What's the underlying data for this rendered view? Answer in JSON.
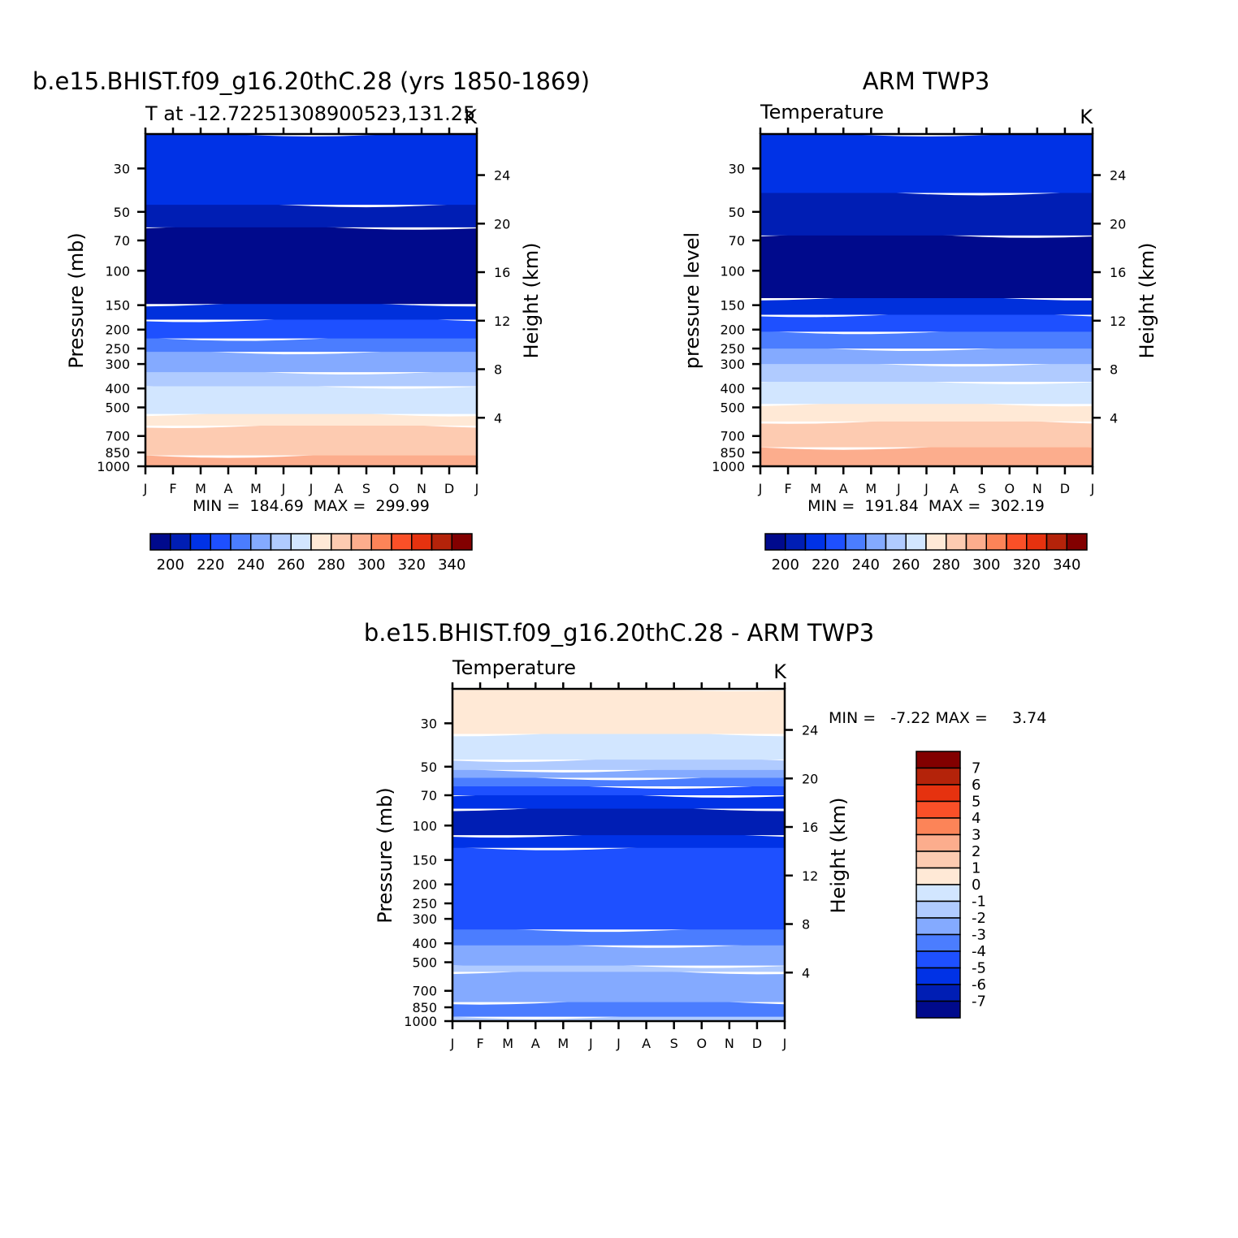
{
  "chart_data": [
    {
      "type": "heatmap",
      "title": "b.e15.BHIST.f09_g16.20thC.28 (yrs 1850-1869)",
      "subtitle_left": "T at -12.72251308900523,131.25",
      "subtitle_right": "K",
      "ylabel": "Pressure (mb)",
      "ylabel_right": "Height (km)",
      "x_ticks": [
        "J",
        "F",
        "M",
        "A",
        "M",
        "J",
        "J",
        "A",
        "S",
        "O",
        "N",
        "D",
        "J"
      ],
      "y_ticks": [
        "30",
        "50",
        "70",
        "100",
        "150",
        "200",
        "250",
        "300",
        "400",
        "500",
        "700",
        "850",
        "1000"
      ],
      "y_tick_values": [
        30,
        50,
        70,
        100,
        150,
        200,
        250,
        300,
        400,
        500,
        700,
        850,
        1000
      ],
      "y_range": [
        20,
        1000
      ],
      "height_ticks": [
        "24",
        "20",
        "16",
        "12",
        "8",
        "4"
      ],
      "height_tick_values": [
        24,
        20,
        16,
        12,
        8,
        4
      ],
      "stats": "MIN =  184.69  MAX =  299.99",
      "colorbar_labels": [
        "200",
        "220",
        "240",
        "260",
        "280",
        "300",
        "320",
        "340"
      ],
      "bands_bottom_up": [
        {
          "color": "#fcad8d",
          "bottom": 1000,
          "top": 880
        },
        {
          "color": "#fdcbb1",
          "bottom": 880,
          "top": 620
        },
        {
          "color": "#ffe9d6",
          "bottom": 620,
          "top": 540
        },
        {
          "color": "#d2e6ff",
          "bottom": 540,
          "top": 390
        },
        {
          "color": "#b0cbff",
          "bottom": 390,
          "top": 330
        },
        {
          "color": "#84aaff",
          "bottom": 330,
          "top": 260
        },
        {
          "color": "#4b7dff",
          "bottom": 260,
          "top": 222
        },
        {
          "color": "#1e50ff",
          "bottom": 222,
          "top": 178
        },
        {
          "color": "#0030dc",
          "bottom": 178,
          "top": 148
        },
        {
          "color": "#000a8c",
          "bottom": 148,
          "top": 60
        },
        {
          "color": "#001eb4",
          "bottom": 60,
          "top": 46
        },
        {
          "color": "#0032e6",
          "bottom": 46,
          "top": 20
        }
      ]
    },
    {
      "type": "heatmap",
      "title": "ARM TWP3",
      "subtitle_left": "Temperature",
      "subtitle_right": "K",
      "ylabel": "pressure level",
      "ylabel_right": "Height (km)",
      "x_ticks": [
        "J",
        "F",
        "M",
        "A",
        "M",
        "J",
        "J",
        "A",
        "S",
        "O",
        "N",
        "D",
        "J"
      ],
      "y_ticks": [
        "30",
        "50",
        "70",
        "100",
        "150",
        "200",
        "250",
        "300",
        "400",
        "500",
        "700",
        "850",
        "1000"
      ],
      "y_tick_values": [
        30,
        50,
        70,
        100,
        150,
        200,
        250,
        300,
        400,
        500,
        700,
        850,
        1000
      ],
      "y_range": [
        20,
        1000
      ],
      "height_ticks": [
        "24",
        "20",
        "16",
        "12",
        "8",
        "4"
      ],
      "height_tick_values": [
        24,
        20,
        16,
        12,
        8,
        4
      ],
      "stats": "MIN =  191.84  MAX =  302.19",
      "colorbar_labels": [
        "200",
        "220",
        "240",
        "260",
        "280",
        "300",
        "320",
        "340"
      ],
      "bands_bottom_up": [
        {
          "color": "#fcad8d",
          "bottom": 1000,
          "top": 800
        },
        {
          "color": "#fdcbb1",
          "bottom": 800,
          "top": 590
        },
        {
          "color": "#ffe9d6",
          "bottom": 590,
          "top": 480
        },
        {
          "color": "#d2e6ff",
          "bottom": 480,
          "top": 370
        },
        {
          "color": "#b0cbff",
          "bottom": 370,
          "top": 300
        },
        {
          "color": "#84aaff",
          "bottom": 300,
          "top": 250
        },
        {
          "color": "#4b7dff",
          "bottom": 250,
          "top": 205
        },
        {
          "color": "#1e50ff",
          "bottom": 205,
          "top": 168
        },
        {
          "color": "#0030dc",
          "bottom": 168,
          "top": 138
        },
        {
          "color": "#000a8c",
          "bottom": 138,
          "top": 66
        },
        {
          "color": "#001eb4",
          "bottom": 66,
          "top": 40
        },
        {
          "color": "#0032e6",
          "bottom": 40,
          "top": 20
        }
      ]
    },
    {
      "type": "heatmap",
      "title": "b.e15.BHIST.f09_g16.20thC.28 - ARM TWP3",
      "subtitle_left": "Temperature",
      "subtitle_right": "K",
      "ylabel": "Pressure (mb)",
      "ylabel_right": "Height (km)",
      "x_ticks": [
        "J",
        "F",
        "M",
        "A",
        "M",
        "J",
        "J",
        "A",
        "S",
        "O",
        "N",
        "D",
        "J"
      ],
      "y_ticks": [
        "30",
        "50",
        "70",
        "100",
        "150",
        "200",
        "250",
        "300",
        "400",
        "500",
        "700",
        "850",
        "1000"
      ],
      "y_tick_values": [
        30,
        50,
        70,
        100,
        150,
        200,
        250,
        300,
        400,
        500,
        700,
        850,
        1000
      ],
      "y_range": [
        20,
        1000
      ],
      "height_ticks": [
        "24",
        "20",
        "16",
        "12",
        "8",
        "4"
      ],
      "height_tick_values": [
        24,
        20,
        16,
        12,
        8,
        4
      ],
      "stats": "MIN =   -7.22 MAX =     3.74",
      "colorbar_labels": [
        "7",
        "6",
        "5",
        "4",
        "3",
        "2",
        "1",
        "0",
        "-1",
        "-2",
        "-3",
        "-4",
        "-5",
        "-6",
        "-7"
      ],
      "bands_bottom_up": [
        {
          "color": "#b0cbff",
          "bottom": 1000,
          "top": 950
        },
        {
          "color": "#4b7dff",
          "bottom": 950,
          "top": 800
        },
        {
          "color": "#84aaff",
          "bottom": 800,
          "top": 560
        },
        {
          "color": "#b0cbff",
          "bottom": 560,
          "top": 520
        },
        {
          "color": "#84aaff",
          "bottom": 520,
          "top": 410
        },
        {
          "color": "#4b7dff",
          "bottom": 410,
          "top": 340
        },
        {
          "color": "#1e50ff",
          "bottom": 340,
          "top": 130
        },
        {
          "color": "#0032e6",
          "bottom": 130,
          "top": 112
        },
        {
          "color": "#001eb4",
          "bottom": 112,
          "top": 82
        },
        {
          "color": "#0032e6",
          "bottom": 82,
          "top": 70
        },
        {
          "color": "#1e50ff",
          "bottom": 70,
          "top": 63
        },
        {
          "color": "#4b7dff",
          "bottom": 63,
          "top": 57
        },
        {
          "color": "#84aaff",
          "bottom": 57,
          "top": 52
        },
        {
          "color": "#b0cbff",
          "bottom": 52,
          "top": 46
        },
        {
          "color": "#d2e6ff",
          "bottom": 46,
          "top": 34
        },
        {
          "color": "#ffe9d6",
          "bottom": 34,
          "top": 20
        }
      ]
    }
  ],
  "palette_abs": [
    "#000a8c",
    "#001eb4",
    "#0032e6",
    "#1e50ff",
    "#4b7dff",
    "#84aaff",
    "#b0cbff",
    "#d2e6ff",
    "#ffe9d6",
    "#fdcbb1",
    "#fcad8d",
    "#fc8458",
    "#fa5028",
    "#e6320f",
    "#b4230a",
    "#820000"
  ],
  "palette_diff_top_down": [
    "#820000",
    "#b4230a",
    "#e6320f",
    "#fa5028",
    "#fc8458",
    "#fcad8d",
    "#fdcbb1",
    "#ffe9d6",
    "#d2e6ff",
    "#b0cbff",
    "#84aaff",
    "#4b7dff",
    "#1e50ff",
    "#0032e6",
    "#001eb4",
    "#000a8c"
  ]
}
